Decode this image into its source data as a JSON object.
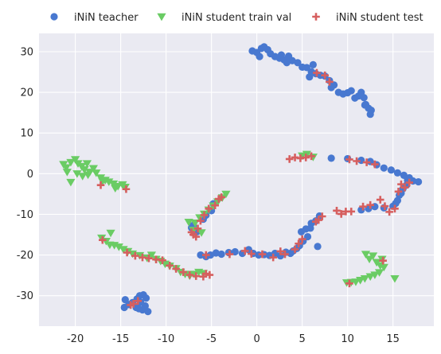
{
  "chart_data": {
    "type": "scatter",
    "title": "",
    "xlabel": "",
    "ylabel": "",
    "xlim": [
      -24,
      19.5
    ],
    "ylim": [
      -37.5,
      34.5
    ],
    "xticks": [
      -20,
      -15,
      -10,
      -5,
      0,
      5,
      10,
      15
    ],
    "yticks": [
      -30,
      -20,
      -10,
      0,
      10,
      20,
      30
    ],
    "grid": true,
    "legend_position": "top",
    "series": [
      {
        "name": "iNiN teacher",
        "marker": "circle",
        "color": "#4878d0",
        "points": [
          [
            -0.5,
            30.2
          ],
          [
            0.0,
            29.8
          ],
          [
            0.5,
            30.8
          ],
          [
            0.8,
            31.2
          ],
          [
            1.2,
            30.5
          ],
          [
            0.3,
            28.8
          ],
          [
            1.5,
            29.5
          ],
          [
            2.0,
            28.8
          ],
          [
            2.5,
            28.4
          ],
          [
            3.0,
            28.0
          ],
          [
            3.5,
            28.9
          ],
          [
            3.9,
            27.8
          ],
          [
            4.5,
            27.3
          ],
          [
            5.0,
            26.2
          ],
          [
            5.5,
            26.1
          ],
          [
            6.0,
            25.1
          ],
          [
            6.5,
            24.6
          ],
          [
            7.0,
            24.2
          ],
          [
            7.5,
            24.0
          ],
          [
            8.0,
            22.9
          ],
          [
            8.5,
            21.8
          ],
          [
            9.0,
            20.0
          ],
          [
            9.5,
            19.6
          ],
          [
            10.0,
            19.9
          ],
          [
            10.4,
            20.4
          ],
          [
            10.8,
            18.6
          ],
          [
            11.2,
            19.1
          ],
          [
            11.5,
            20.0
          ],
          [
            11.8,
            18.7
          ],
          [
            12.0,
            17.0
          ],
          [
            12.3,
            16.1
          ],
          [
            12.6,
            15.6
          ],
          [
            12.5,
            14.6
          ],
          [
            11.9,
            16.9
          ],
          [
            5.8,
            23.8
          ],
          [
            3.3,
            27.3
          ],
          [
            2.7,
            29.2
          ],
          [
            8.2,
            21.2
          ],
          [
            6.2,
            26.8
          ],
          [
            8.2,
            3.8
          ],
          [
            10.0,
            3.7
          ],
          [
            11.5,
            3.3
          ],
          [
            12.5,
            3.0
          ],
          [
            13.2,
            2.2
          ],
          [
            14.0,
            1.4
          ],
          [
            14.8,
            0.9
          ],
          [
            15.5,
            0.2
          ],
          [
            16.2,
            -0.4
          ],
          [
            16.6,
            -1.6
          ],
          [
            16.5,
            -2.8
          ],
          [
            16.1,
            -3.7
          ],
          [
            15.7,
            -5.3
          ],
          [
            15.5,
            -6.6
          ],
          [
            15.0,
            -8.0
          ],
          [
            14.0,
            -8.4
          ],
          [
            13.0,
            -8.1
          ],
          [
            12.3,
            -8.6
          ],
          [
            11.5,
            -8.9
          ],
          [
            17.8,
            -2.0
          ],
          [
            17.2,
            -1.8
          ],
          [
            16.8,
            -1.0
          ],
          [
            15.9,
            -4.8
          ],
          [
            15.3,
            -7.3
          ],
          [
            6.5,
            -11.6
          ],
          [
            6.9,
            -10.4
          ],
          [
            6.0,
            -12.2
          ],
          [
            5.4,
            -13.6
          ],
          [
            5.6,
            -15.5
          ],
          [
            4.9,
            -14.3
          ],
          [
            5.1,
            -16.6
          ],
          [
            4.7,
            -17.7
          ],
          [
            4.4,
            -18.4
          ],
          [
            4.0,
            -19.0
          ],
          [
            3.7,
            -19.6
          ],
          [
            3.2,
            -19.3
          ],
          [
            2.6,
            -20.2
          ],
          [
            2.0,
            -19.6
          ],
          [
            1.4,
            -20.1
          ],
          [
            0.8,
            -19.9
          ],
          [
            0.2,
            -20.0
          ],
          [
            -0.4,
            -19.6
          ],
          [
            -0.9,
            -18.7
          ],
          [
            -1.6,
            -19.6
          ],
          [
            -2.4,
            -19.2
          ],
          [
            -3.1,
            -19.4
          ],
          [
            -3.9,
            -19.8
          ],
          [
            -4.5,
            -19.5
          ],
          [
            -5.1,
            -20.0
          ],
          [
            -5.6,
            -20.4
          ],
          [
            -6.2,
            -20.0
          ],
          [
            6.7,
            -17.9
          ],
          [
            5.9,
            -13.4
          ],
          [
            -7.2,
            -13.3
          ],
          [
            -6.6,
            -14.3
          ],
          [
            -7.0,
            -12.7
          ],
          [
            -5.9,
            -11.2
          ],
          [
            -5.6,
            -10.2
          ],
          [
            -5.0,
            -9.1
          ],
          [
            -4.8,
            -7.4
          ],
          [
            -14.5,
            -31.0
          ],
          [
            -14.1,
            -32.2
          ],
          [
            -13.7,
            -31.7
          ],
          [
            -13.2,
            -30.8
          ],
          [
            -12.9,
            -30.0
          ],
          [
            -12.5,
            -29.8
          ],
          [
            -12.2,
            -30.6
          ],
          [
            -12.8,
            -31.6
          ],
          [
            -13.3,
            -32.9
          ],
          [
            -12.6,
            -33.5
          ],
          [
            -12.0,
            -33.9
          ],
          [
            -14.6,
            -32.9
          ],
          [
            -13.0,
            -33.2
          ],
          [
            -12.3,
            -32.5
          ]
        ]
      },
      {
        "name": "iNiN student train val",
        "marker": "triangle-down",
        "color": "#6acc64",
        "points": [
          [
            -21.3,
            2.3
          ],
          [
            -21.0,
            1.5
          ],
          [
            -20.5,
            2.8
          ],
          [
            -20.0,
            3.5
          ],
          [
            -19.7,
            2.5
          ],
          [
            -19.3,
            1.8
          ],
          [
            -19.0,
            1.0
          ],
          [
            -18.7,
            2.5
          ],
          [
            -18.4,
            0.4
          ],
          [
            -18.0,
            1.3
          ],
          [
            -17.7,
            0.2
          ],
          [
            -17.2,
            -1.0
          ],
          [
            -16.7,
            -1.6
          ],
          [
            -16.3,
            -2.0
          ],
          [
            -15.8,
            -2.5
          ],
          [
            -15.3,
            -3.1
          ],
          [
            -14.8,
            -2.7
          ],
          [
            -20.9,
            0.4
          ],
          [
            -20.5,
            -2.1
          ],
          [
            -19.8,
            0.0
          ],
          [
            -19.2,
            -0.6
          ],
          [
            -18.6,
            -0.3
          ],
          [
            -17.0,
            -1.9
          ],
          [
            -15.6,
            -3.6
          ],
          [
            -14.5,
            -3.3
          ],
          [
            -17.1,
            -15.8
          ],
          [
            -16.6,
            -16.6
          ],
          [
            -16.1,
            -14.6
          ],
          [
            -15.7,
            -17.6
          ],
          [
            -15.2,
            -18.0
          ],
          [
            -14.7,
            -18.6
          ],
          [
            -14.2,
            -19.1
          ],
          [
            -13.7,
            -19.7
          ],
          [
            -12.9,
            -20.1
          ],
          [
            -12.1,
            -20.7
          ],
          [
            -11.6,
            -20.0
          ],
          [
            -11.1,
            -21.0
          ],
          [
            -10.6,
            -21.5
          ],
          [
            -10.1,
            -22.2
          ],
          [
            -9.6,
            -22.7
          ],
          [
            -8.9,
            -23.3
          ],
          [
            -8.4,
            -24.2
          ],
          [
            -7.9,
            -24.7
          ],
          [
            -7.4,
            -25.1
          ],
          [
            -6.9,
            -24.7
          ],
          [
            -6.4,
            -24.2
          ],
          [
            -5.9,
            -24.5
          ],
          [
            -16.2,
            -17.5
          ],
          [
            -7.5,
            -11.9
          ],
          [
            -6.8,
            -12.1
          ],
          [
            -7.0,
            -13.9
          ],
          [
            -6.3,
            -10.8
          ],
          [
            -5.8,
            -9.9
          ],
          [
            -5.3,
            -8.9
          ],
          [
            -4.8,
            -7.9
          ],
          [
            -4.3,
            -6.9
          ],
          [
            -3.8,
            -5.9
          ],
          [
            -3.4,
            -5.0
          ],
          [
            -6.1,
            -14.5
          ],
          [
            5.0,
            4.4
          ],
          [
            5.5,
            4.8
          ],
          [
            6.2,
            4.1
          ],
          [
            12.0,
            -19.8
          ],
          [
            12.4,
            -21.0
          ],
          [
            12.8,
            -20.2
          ],
          [
            13.2,
            -21.8
          ],
          [
            13.6,
            -22.6
          ],
          [
            14.0,
            -23.0
          ],
          [
            13.5,
            -24.3
          ],
          [
            13.0,
            -24.9
          ],
          [
            12.5,
            -25.3
          ],
          [
            11.9,
            -25.8
          ],
          [
            11.4,
            -26.2
          ],
          [
            10.9,
            -26.6
          ],
          [
            10.4,
            -26.7
          ],
          [
            9.9,
            -26.8
          ],
          [
            13.8,
            -21.0
          ],
          [
            15.2,
            -25.8
          ]
        ]
      },
      {
        "name": "iNiN student test",
        "marker": "plus",
        "color": "#d65f5f",
        "points": [
          [
            -17.2,
            -2.8
          ],
          [
            -14.4,
            -3.8
          ],
          [
            -17.0,
            -16.3
          ],
          [
            -14.3,
            -19.4
          ],
          [
            -13.4,
            -20.2
          ],
          [
            -12.6,
            -20.6
          ],
          [
            -11.9,
            -20.8
          ],
          [
            -11.1,
            -21.1
          ],
          [
            -10.4,
            -21.3
          ],
          [
            -9.6,
            -22.6
          ],
          [
            -8.9,
            -23.4
          ],
          [
            -8.1,
            -24.2
          ],
          [
            -7.4,
            -24.9
          ],
          [
            -6.7,
            -25.2
          ],
          [
            -5.6,
            -24.6
          ],
          [
            -5.2,
            -24.9
          ],
          [
            -5.9,
            -25.3
          ],
          [
            -7.0,
            -15.0
          ],
          [
            -6.7,
            -15.5
          ],
          [
            -6.5,
            -13.5
          ],
          [
            -6.2,
            -11.6
          ],
          [
            -5.8,
            -10.2
          ],
          [
            -5.3,
            -8.6
          ],
          [
            -4.6,
            -7.8
          ],
          [
            -4.2,
            -6.2
          ],
          [
            -3.9,
            -5.8
          ],
          [
            -7.2,
            -14.4
          ],
          [
            -13.9,
            -32.3
          ],
          [
            -13.6,
            -32.0
          ],
          [
            -13.1,
            -31.3
          ],
          [
            3.6,
            3.6
          ],
          [
            4.2,
            4.0
          ],
          [
            4.8,
            3.8
          ],
          [
            5.4,
            4.0
          ],
          [
            6.0,
            4.3
          ],
          [
            10.2,
            3.5
          ],
          [
            11.0,
            3.1
          ],
          [
            12.1,
            2.8
          ],
          [
            13.0,
            2.3
          ],
          [
            15.9,
            -2.6
          ],
          [
            16.3,
            -3.4
          ],
          [
            16.8,
            -2.2
          ],
          [
            15.6,
            -4.4
          ],
          [
            15.2,
            -8.6
          ],
          [
            14.6,
            -9.4
          ],
          [
            14.1,
            -8.0
          ],
          [
            13.6,
            -6.4
          ],
          [
            12.5,
            -7.7
          ],
          [
            11.7,
            -8.1
          ],
          [
            10.4,
            -9.3
          ],
          [
            9.8,
            -9.3
          ],
          [
            9.3,
            -9.9
          ],
          [
            8.8,
            -9.1
          ],
          [
            7.2,
            -10.5
          ],
          [
            6.8,
            -11.4
          ],
          [
            6.5,
            -11.8
          ],
          [
            5.0,
            -16.1
          ],
          [
            4.6,
            -17.2
          ],
          [
            4.2,
            -18.6
          ],
          [
            3.1,
            -19.8
          ],
          [
            2.6,
            -19.1
          ],
          [
            1.8,
            -20.6
          ],
          [
            0.6,
            -19.8
          ],
          [
            -0.6,
            -19.7
          ],
          [
            -1.3,
            -19.0
          ],
          [
            -3.0,
            -19.8
          ],
          [
            -5.6,
            -20.0
          ],
          [
            6.6,
            24.8
          ],
          [
            7.5,
            24.2
          ],
          [
            8.0,
            22.6
          ],
          [
            10.2,
            -27.0
          ],
          [
            13.9,
            -21.4
          ]
        ]
      }
    ]
  }
}
